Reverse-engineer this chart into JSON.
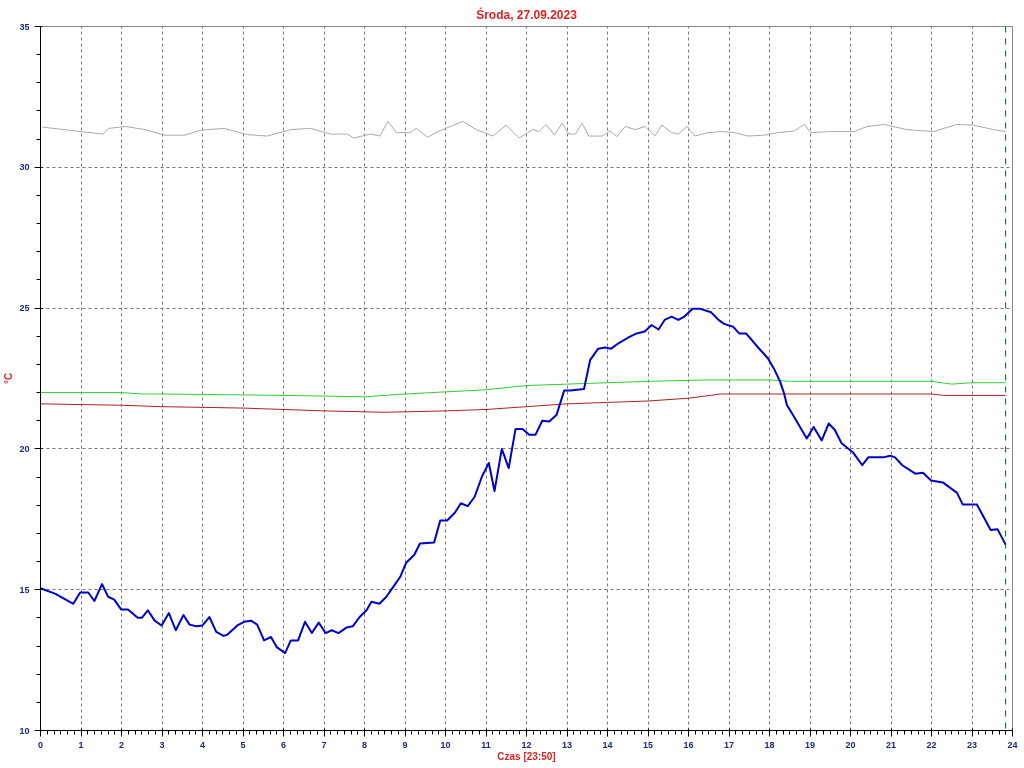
{
  "chart_data": {
    "type": "line",
    "title": "Środa, 27.09.2023",
    "xlabel": "Czas [23:50]",
    "ylabel": "°C",
    "xlim": [
      0,
      24
    ],
    "ylim": [
      10,
      35
    ],
    "xticks": [
      0,
      1,
      2,
      3,
      4,
      5,
      6,
      7,
      8,
      9,
      10,
      11,
      12,
      13,
      14,
      15,
      16,
      17,
      18,
      19,
      20,
      21,
      22,
      23,
      24
    ],
    "yticks": [
      10,
      15,
      20,
      25,
      30,
      35
    ],
    "grid": true,
    "marker": "none",
    "line_style": "solid",
    "ref_lines": [
      {
        "axis": "x",
        "value": 23.83,
        "label": null,
        "color": "#006600",
        "line_style": "dashed"
      }
    ],
    "series": [
      {
        "color": "#aaaaaa",
        "x": [
          0.04,
          0.98,
          1.55,
          1.68,
          2.09,
          2.58,
          3.07,
          3.56,
          3.97,
          4.54,
          5.11,
          5.6,
          6.18,
          6.67,
          7.16,
          7.57,
          7.73,
          8.14,
          8.38,
          8.58,
          8.79,
          9.12,
          9.28,
          9.56,
          9.85,
          10.43,
          10.76,
          11.17,
          11.5,
          11.82,
          12.15,
          12.31,
          12.48,
          12.69,
          12.88,
          13.05,
          13.21,
          13.37,
          13.54,
          13.87,
          14.06,
          14.23,
          14.44,
          14.68,
          14.93,
          15.17,
          15.34,
          15.58,
          15.75,
          15.96,
          16.16,
          16.48,
          16.81,
          17.14,
          17.47,
          17.87,
          18.2,
          18.61,
          18.86,
          19.02,
          19.51,
          20.08,
          20.41,
          20.82,
          21.39,
          22.05,
          22.62,
          23.03,
          23.52,
          23.83
        ],
        "values": [
          31.43,
          31.27,
          31.18,
          31.38,
          31.45,
          31.34,
          31.14,
          31.14,
          31.32,
          31.38,
          31.16,
          31.11,
          31.34,
          31.38,
          31.18,
          31.18,
          31.04,
          31.18,
          31.11,
          31.63,
          31.23,
          31.23,
          31.38,
          31.07,
          31.29,
          31.63,
          31.34,
          31.11,
          31.5,
          31.04,
          31.34,
          31.27,
          31.52,
          31.14,
          31.57,
          31.18,
          31.18,
          31.57,
          31.11,
          31.11,
          31.29,
          31.09,
          31.45,
          31.34,
          31.45,
          31.11,
          31.5,
          31.23,
          31.18,
          31.45,
          31.11,
          31.23,
          31.27,
          31.23,
          31.11,
          31.14,
          31.23,
          31.29,
          31.52,
          31.23,
          31.27,
          31.27,
          31.45,
          31.52,
          31.34,
          31.27,
          31.52,
          31.5,
          31.34,
          31.27
        ]
      },
      {
        "color": "#33cc33",
        "x": [
          0,
          2,
          2.5,
          3,
          6,
          8,
          9,
          11,
          12,
          13,
          14,
          15,
          16.5,
          18,
          18.5,
          19,
          22,
          22.5,
          23,
          23.83
        ],
        "values": [
          22.0,
          22.0,
          21.95,
          21.95,
          21.9,
          21.85,
          21.95,
          22.1,
          22.25,
          22.3,
          22.35,
          22.4,
          22.45,
          22.45,
          22.4,
          22.4,
          22.4,
          22.3,
          22.35,
          22.35
        ]
      },
      {
        "color": "#aa2222",
        "x": [
          0,
          2,
          3,
          5,
          6,
          7,
          8.5,
          10,
          11,
          12,
          13,
          14,
          15,
          16,
          16.8,
          18,
          22,
          22.3,
          23.83
        ],
        "values": [
          21.6,
          21.55,
          21.5,
          21.45,
          21.4,
          21.35,
          21.3,
          21.35,
          21.4,
          21.5,
          21.6,
          21.65,
          21.7,
          21.8,
          21.95,
          21.95,
          21.95,
          21.9,
          21.9
        ]
      },
      {
        "color": "#0000cc",
        "x": [
          0,
          0.37,
          0.81,
          0.98,
          1.18,
          1.33,
          1.52,
          1.67,
          1.82,
          1.99,
          2.16,
          2.4,
          2.5,
          2.65,
          2.82,
          2.99,
          3.17,
          3.34,
          3.53,
          3.68,
          3.85,
          4.0,
          4.17,
          4.34,
          4.52,
          4.61,
          4.86,
          5.03,
          5.2,
          5.35,
          5.52,
          5.69,
          5.84,
          6.04,
          6.18,
          6.36,
          6.53,
          6.7,
          6.87,
          7.04,
          7.19,
          7.36,
          7.56,
          7.71,
          7.88,
          8.05,
          8.17,
          8.37,
          8.54,
          8.71,
          8.88,
          9.03,
          9.23,
          9.37,
          9.72,
          9.87,
          10.04,
          10.23,
          10.38,
          10.55,
          10.72,
          10.9,
          11.07,
          11.21,
          11.39,
          11.56,
          11.73,
          11.9,
          12.07,
          12.22,
          12.39,
          12.56,
          12.74,
          12.93,
          13.08,
          13.25,
          13.42,
          13.57,
          13.77,
          13.94,
          14.09,
          14.28,
          14.53,
          14.72,
          14.92,
          15.09,
          15.26,
          15.41,
          15.58,
          15.75,
          15.9,
          16.1,
          16.27,
          16.56,
          16.74,
          16.88,
          17.1,
          17.25,
          17.42,
          17.72,
          17.96,
          18.11,
          18.26,
          18.36,
          18.43,
          18.58,
          18.92,
          19.09,
          19.29,
          19.46,
          19.61,
          19.78,
          20.07,
          20.29,
          20.44,
          20.81,
          20.98,
          21.1,
          21.28,
          21.6,
          21.79,
          21.99,
          22.28,
          22.63,
          22.77,
          23.12,
          23.46,
          23.63,
          23.83
        ],
        "values": [
          15.05,
          14.85,
          14.5,
          14.9,
          14.9,
          14.6,
          15.2,
          14.75,
          14.65,
          14.3,
          14.3,
          14.0,
          14.0,
          14.27,
          13.9,
          13.73,
          14.17,
          13.56,
          14.1,
          13.76,
          13.7,
          13.73,
          14.03,
          13.5,
          13.36,
          13.4,
          13.73,
          13.86,
          13.9,
          13.76,
          13.2,
          13.32,
          12.95,
          12.75,
          13.2,
          13.2,
          13.86,
          13.46,
          13.83,
          13.46,
          13.56,
          13.46,
          13.66,
          13.7,
          14.03,
          14.27,
          14.57,
          14.5,
          14.75,
          15.1,
          15.45,
          15.96,
          16.24,
          16.64,
          16.68,
          17.46,
          17.46,
          17.73,
          18.07,
          17.97,
          18.3,
          19.02,
          19.5,
          18.5,
          20.0,
          19.32,
          20.71,
          20.71,
          20.5,
          20.5,
          21.0,
          20.97,
          21.2,
          22.07,
          22.07,
          22.1,
          22.13,
          23.15,
          23.56,
          23.6,
          23.56,
          23.76,
          23.97,
          24.1,
          24.17,
          24.4,
          24.24,
          24.58,
          24.7,
          24.58,
          24.7,
          24.98,
          24.98,
          24.85,
          24.58,
          24.44,
          24.34,
          24.1,
          24.1,
          23.6,
          23.22,
          22.85,
          22.4,
          21.97,
          21.56,
          21.2,
          20.37,
          20.78,
          20.3,
          20.9,
          20.68,
          20.2,
          19.86,
          19.42,
          19.7,
          19.7,
          19.76,
          19.7,
          19.42,
          19.12,
          19.15,
          18.88,
          18.81,
          18.44,
          18.03,
          18.03,
          17.12,
          17.15,
          16.6
        ]
      }
    ]
  }
}
